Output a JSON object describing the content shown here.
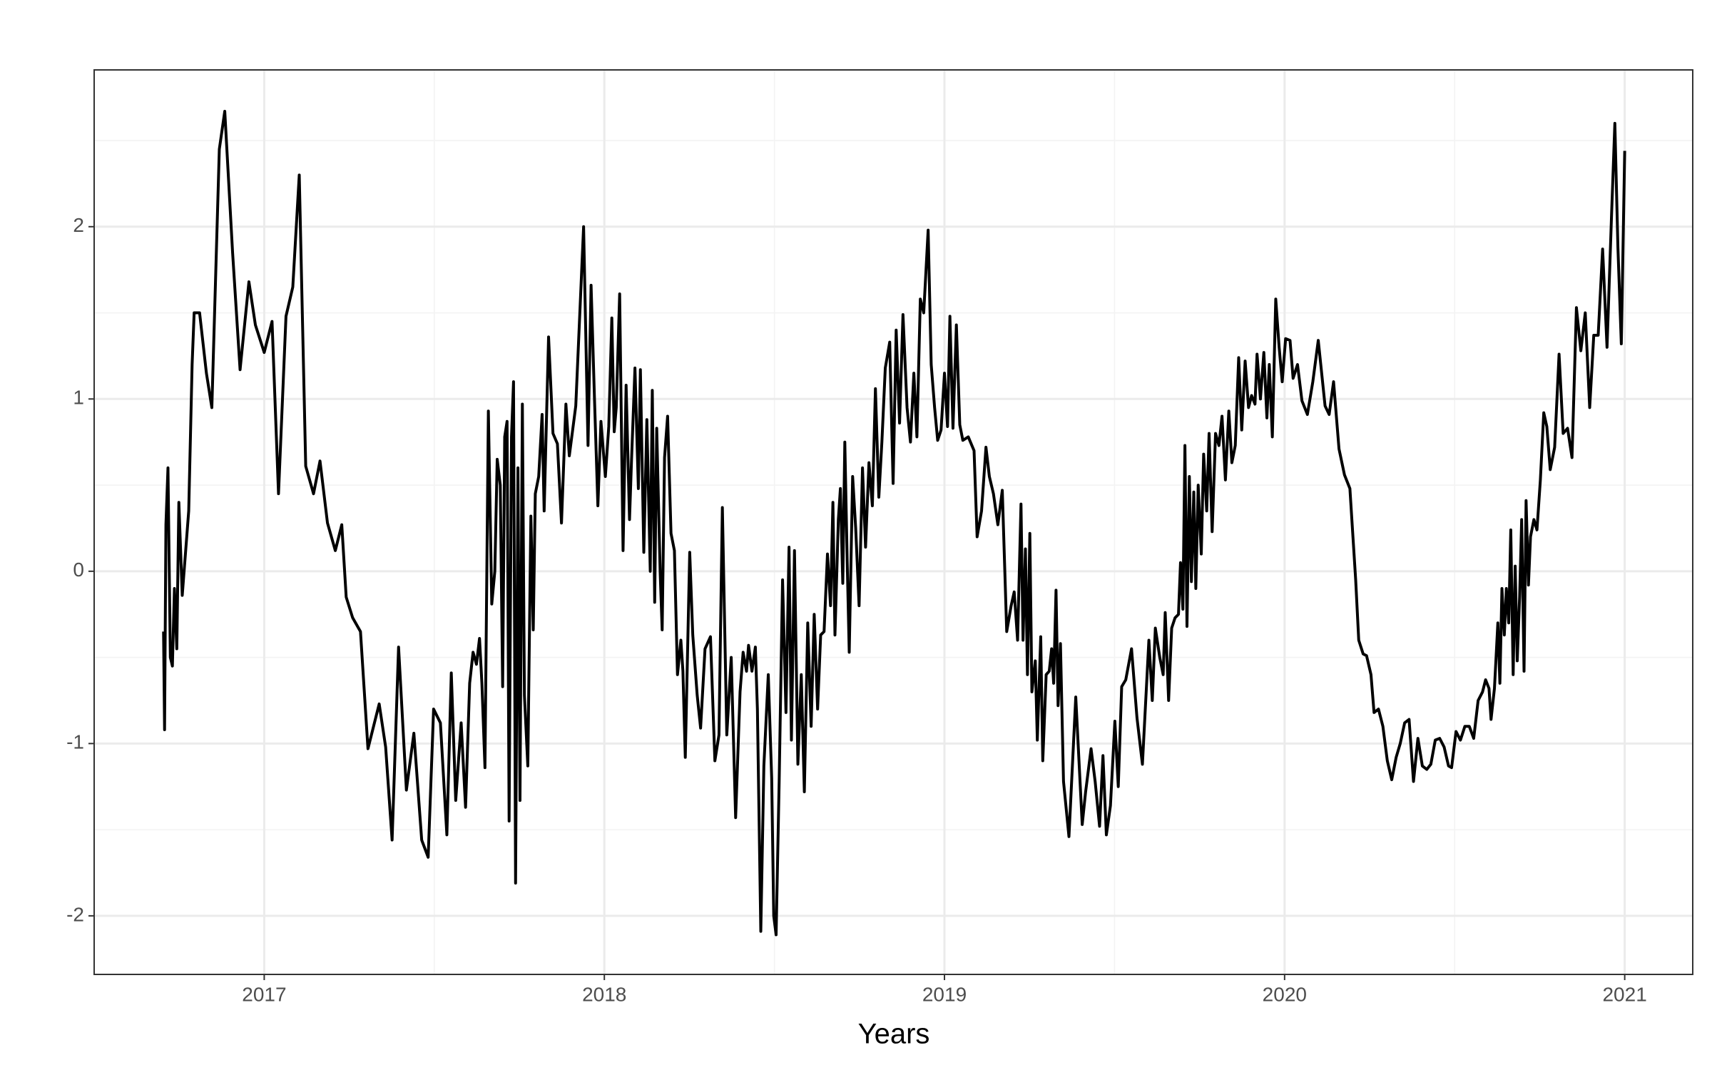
{
  "chart_data": {
    "type": "line",
    "x_label": "Years",
    "color": "#000000",
    "grid": true,
    "xlim": [
      2016.5,
      2021.2
    ],
    "xticks": [
      2017,
      2018,
      2019,
      2020,
      2021
    ],
    "ylim": [
      -2.34,
      2.91
    ],
    "yticks": [
      -2,
      -1,
      0,
      1,
      2
    ],
    "x": [
      2016.704,
      2016.707,
      2016.711,
      2016.717,
      2016.724,
      2016.73,
      2016.736,
      2016.743,
      2016.749,
      2016.759,
      2016.778,
      2016.788,
      2016.794,
      2016.81,
      2016.83,
      2016.846,
      2016.868,
      2016.884,
      2016.907,
      2016.929,
      2016.955,
      2016.974,
      2017.0,
      2017.023,
      2017.042,
      2017.064,
      2017.084,
      2017.103,
      2017.122,
      2017.145,
      2017.164,
      2017.186,
      2017.209,
      2017.228,
      2017.241,
      2017.26,
      2017.283,
      2017.305,
      2017.338,
      2017.357,
      2017.376,
      2017.395,
      2017.418,
      2017.44,
      2017.463,
      2017.482,
      2017.498,
      2017.518,
      2017.537,
      2017.55,
      2017.563,
      2017.579,
      2017.592,
      2017.604,
      2017.614,
      2017.624,
      2017.633,
      2017.64,
      2017.649,
      2017.659,
      2017.669,
      2017.678,
      2017.685,
      2017.694,
      2017.701,
      2017.707,
      2017.714,
      2017.72,
      2017.727,
      2017.733,
      2017.739,
      2017.746,
      2017.752,
      2017.759,
      2017.765,
      2017.775,
      2017.784,
      2017.791,
      2017.797,
      2017.807,
      2017.817,
      2017.823,
      2017.836,
      2017.849,
      2017.862,
      2017.874,
      2017.887,
      2017.897,
      2017.916,
      2017.939,
      2017.952,
      2017.961,
      2017.971,
      2017.981,
      2017.99,
      2018.003,
      2018.013,
      2018.022,
      2018.029,
      2018.035,
      2018.045,
      2018.055,
      2018.064,
      2018.074,
      2018.08,
      2018.09,
      2018.1,
      2018.106,
      2018.116,
      2018.125,
      2018.135,
      2018.141,
      2018.148,
      2018.154,
      2018.164,
      2018.17,
      2018.177,
      2018.186,
      2018.196,
      2018.206,
      2018.215,
      2018.225,
      2018.231,
      2018.238,
      2018.251,
      2018.26,
      2018.273,
      2018.283,
      2018.296,
      2018.312,
      2018.325,
      2018.337,
      2018.347,
      2018.36,
      2018.373,
      2018.386,
      2018.399,
      2018.408,
      2018.418,
      2018.424,
      2018.434,
      2018.444,
      2018.45,
      2018.46,
      2018.469,
      2018.482,
      2018.492,
      2018.498,
      2018.505,
      2018.514,
      2018.524,
      2018.534,
      2018.543,
      2018.55,
      2018.559,
      2018.569,
      2018.579,
      2018.588,
      2018.598,
      2018.608,
      2018.617,
      2018.627,
      2018.636,
      2018.646,
      2018.656,
      2018.665,
      2018.672,
      2018.678,
      2018.688,
      2018.694,
      2018.701,
      2018.707,
      2018.714,
      2018.72,
      2018.73,
      2018.739,
      2018.749,
      2018.759,
      2018.768,
      2018.778,
      2018.788,
      2018.797,
      2018.807,
      2018.816,
      2018.826,
      2018.839,
      2018.849,
      2018.858,
      2018.868,
      2018.878,
      2018.89,
      2018.9,
      2018.91,
      2018.919,
      2018.929,
      2018.939,
      2018.952,
      2018.961,
      2018.971,
      2018.98,
      2018.99,
      2019.0,
      2019.009,
      2019.016,
      2019.025,
      2019.035,
      2019.045,
      2019.054,
      2019.07,
      2019.087,
      2019.096,
      2019.109,
      2019.122,
      2019.132,
      2019.144,
      2019.157,
      2019.17,
      2019.183,
      2019.196,
      2019.205,
      2019.215,
      2019.225,
      2019.231,
      2019.238,
      2019.244,
      2019.251,
      2019.257,
      2019.267,
      2019.273,
      2019.283,
      2019.289,
      2019.299,
      2019.308,
      2019.315,
      2019.321,
      2019.328,
      2019.334,
      2019.341,
      2019.35,
      2019.366,
      2019.386,
      2019.405,
      2019.415,
      2019.431,
      2019.443,
      2019.456,
      2019.466,
      2019.476,
      2019.488,
      2019.501,
      2019.511,
      2019.521,
      2019.533,
      2019.55,
      2019.566,
      2019.582,
      2019.601,
      2019.611,
      2019.62,
      2019.633,
      2019.643,
      2019.649,
      2019.659,
      2019.668,
      2019.678,
      2019.688,
      2019.694,
      2019.701,
      2019.707,
      2019.713,
      2019.72,
      2019.726,
      2019.733,
      2019.739,
      2019.746,
      2019.755,
      2019.762,
      2019.771,
      2019.778,
      2019.787,
      2019.797,
      2019.807,
      2019.816,
      2019.826,
      2019.836,
      2019.845,
      2019.855,
      2019.865,
      2019.874,
      2019.884,
      2019.894,
      2019.903,
      2019.913,
      2019.919,
      2019.929,
      2019.939,
      2019.948,
      2019.955,
      2019.964,
      2019.974,
      2019.984,
      2019.993,
      2020.003,
      2020.016,
      2020.025,
      2020.038,
      2020.051,
      2020.067,
      2020.083,
      2020.099,
      2020.119,
      2020.131,
      2020.144,
      2020.16,
      2020.176,
      2020.192,
      2020.209,
      2020.218,
      2020.231,
      2020.241,
      2020.254,
      2020.263,
      2020.276,
      2020.289,
      2020.302,
      2020.315,
      2020.328,
      2020.34,
      2020.353,
      2020.366,
      2020.379,
      2020.392,
      2020.405,
      2020.418,
      2020.43,
      2020.443,
      2020.456,
      2020.469,
      2020.482,
      2020.491,
      2020.504,
      2020.517,
      2020.53,
      2020.543,
      2020.556,
      2020.569,
      2020.582,
      2020.591,
      2020.601,
      2020.607,
      2020.617,
      2020.627,
      2020.633,
      2020.639,
      2020.646,
      2020.652,
      2020.659,
      2020.665,
      2020.672,
      2020.678,
      2020.684,
      2020.691,
      2020.697,
      2020.704,
      2020.71,
      2020.717,
      2020.723,
      2020.733,
      2020.742,
      2020.752,
      2020.762,
      2020.771,
      2020.781,
      2020.794,
      2020.807,
      2020.819,
      2020.832,
      2020.845,
      2020.858,
      2020.871,
      2020.884,
      2020.897,
      2020.909,
      2020.922,
      2020.935,
      2020.948,
      2020.961,
      2020.971,
      2020.98,
      2020.99,
      2021.0
    ],
    "values": [
      -0.35,
      -0.92,
      0.27,
      0.6,
      -0.5,
      -0.55,
      -0.1,
      -0.45,
      0.4,
      -0.14,
      0.35,
      1.2,
      1.5,
      1.5,
      1.15,
      0.95,
      2.45,
      2.67,
      1.85,
      1.17,
      1.68,
      1.43,
      1.27,
      1.45,
      0.45,
      1.48,
      1.65,
      2.3,
      0.61,
      0.45,
      0.64,
      0.28,
      0.12,
      0.27,
      -0.15,
      -0.27,
      -0.35,
      -1.03,
      -0.77,
      -1.02,
      -1.56,
      -0.44,
      -1.27,
      -0.94,
      -1.56,
      -1.66,
      -0.8,
      -0.88,
      -1.53,
      -0.59,
      -1.33,
      -0.88,
      -1.37,
      -0.65,
      -0.47,
      -0.54,
      -0.39,
      -0.65,
      -1.14,
      0.93,
      -0.19,
      0.0,
      0.65,
      0.5,
      -0.67,
      0.78,
      0.87,
      -1.45,
      0.78,
      1.1,
      -1.81,
      0.6,
      -1.33,
      0.97,
      -0.72,
      -1.13,
      0.32,
      -0.34,
      0.45,
      0.55,
      0.91,
      0.35,
      1.36,
      0.8,
      0.74,
      0.28,
      0.97,
      0.67,
      0.96,
      2.0,
      0.73,
      1.66,
      1.0,
      0.38,
      0.87,
      0.55,
      0.84,
      1.47,
      0.81,
      0.95,
      1.61,
      0.12,
      1.08,
      0.3,
      0.65,
      1.18,
      0.48,
      1.17,
      0.11,
      0.88,
      0.0,
      1.05,
      -0.18,
      0.83,
      0.0,
      -0.34,
      0.66,
      0.9,
      0.22,
      0.12,
      -0.6,
      -0.4,
      -0.58,
      -1.08,
      0.11,
      -0.37,
      -0.72,
      -0.91,
      -0.45,
      -0.38,
      -1.1,
      -0.95,
      0.37,
      -0.95,
      -0.5,
      -1.43,
      -0.7,
      -0.47,
      -0.58,
      -0.43,
      -0.58,
      -0.44,
      -0.8,
      -2.09,
      -1.13,
      -0.6,
      -1.2,
      -2.0,
      -2.11,
      -1.22,
      -0.05,
      -0.82,
      0.14,
      -0.98,
      0.12,
      -1.12,
      -0.6,
      -1.28,
      -0.3,
      -0.9,
      -0.25,
      -0.8,
      -0.37,
      -0.35,
      0.1,
      -0.2,
      0.4,
      -0.37,
      0.3,
      0.48,
      -0.07,
      0.75,
      0.06,
      -0.47,
      0.55,
      0.25,
      -0.2,
      0.6,
      0.14,
      0.63,
      0.38,
      1.06,
      0.43,
      0.75,
      1.18,
      1.33,
      0.51,
      1.4,
      0.86,
      1.49,
      0.95,
      0.75,
      1.15,
      0.78,
      1.58,
      1.5,
      1.98,
      1.2,
      0.95,
      0.76,
      0.82,
      1.15,
      0.84,
      1.48,
      0.83,
      1.43,
      0.85,
      0.76,
      0.78,
      0.7,
      0.2,
      0.35,
      0.72,
      0.55,
      0.45,
      0.27,
      0.47,
      -0.35,
      -0.2,
      -0.12,
      -0.4,
      0.39,
      -0.4,
      0.13,
      -0.6,
      0.22,
      -0.7,
      -0.52,
      -0.98,
      -0.38,
      -1.1,
      -0.6,
      -0.58,
      -0.45,
      -0.65,
      -0.11,
      -0.78,
      -0.42,
      -1.22,
      -1.54,
      -0.73,
      -1.47,
      -1.28,
      -1.03,
      -1.22,
      -1.48,
      -1.07,
      -1.53,
      -1.36,
      -0.87,
      -1.25,
      -0.67,
      -0.63,
      -0.45,
      -0.85,
      -1.12,
      -0.4,
      -0.75,
      -0.33,
      -0.5,
      -0.6,
      -0.24,
      -0.75,
      -0.33,
      -0.27,
      -0.25,
      0.05,
      -0.22,
      0.73,
      -0.32,
      0.55,
      -0.06,
      0.46,
      -0.1,
      0.5,
      0.1,
      0.68,
      0.35,
      0.8,
      0.23,
      0.8,
      0.73,
      0.9,
      0.53,
      0.93,
      0.63,
      0.73,
      1.24,
      0.82,
      1.22,
      0.95,
      1.02,
      0.97,
      1.26,
      1.0,
      1.27,
      0.89,
      1.2,
      0.78,
      1.58,
      1.3,
      1.1,
      1.35,
      1.34,
      1.12,
      1.2,
      0.99,
      0.91,
      1.1,
      1.34,
      0.96,
      0.91,
      1.1,
      0.71,
      0.56,
      0.48,
      -0.05,
      -0.4,
      -0.48,
      -0.49,
      -0.6,
      -0.82,
      -0.8,
      -0.9,
      -1.1,
      -1.21,
      -1.08,
      -1.0,
      -0.88,
      -0.86,
      -1.22,
      -0.97,
      -1.13,
      -1.15,
      -1.12,
      -0.98,
      -0.97,
      -1.02,
      -1.13,
      -1.14,
      -0.93,
      -0.98,
      -0.9,
      -0.9,
      -0.97,
      -0.75,
      -0.7,
      -0.63,
      -0.68,
      -0.86,
      -0.68,
      -0.3,
      -0.65,
      -0.1,
      -0.37,
      -0.1,
      -0.3,
      0.24,
      -0.6,
      0.03,
      -0.52,
      -0.15,
      0.3,
      -0.58,
      0.41,
      -0.08,
      0.2,
      0.3,
      0.24,
      0.53,
      0.92,
      0.84,
      0.59,
      0.72,
      1.26,
      0.8,
      0.83,
      0.66,
      1.53,
      1.28,
      1.5,
      0.95,
      1.37,
      1.37,
      1.87,
      1.3,
      2.05,
      2.6,
      1.88,
      1.32,
      2.44
    ]
  }
}
